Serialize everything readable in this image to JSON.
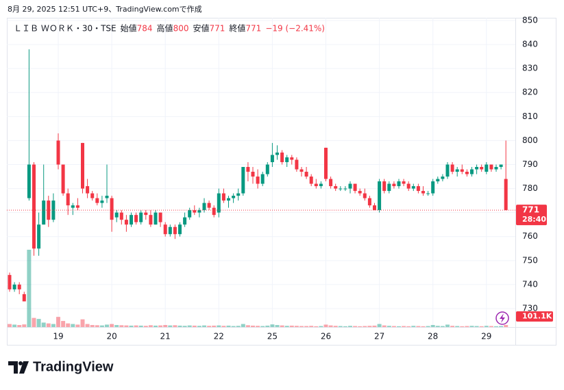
{
  "chart_data": {
    "type": "candlestick",
    "header_text": "8月 29, 2025 12:51 UTC+9、TradingView.comで作成",
    "symbol": "ＬＩＢ ＷＯＲＫ・30・TSE",
    "legend_labels": [
      "始値",
      "高値",
      "安値",
      "終値"
    ],
    "change_label": "−19 (−2.41%)",
    "countdown": "28:40",
    "last_volume_label": "101.1K",
    "brand": "TradingView",
    "up_color": "#089981",
    "down_color": "#f23645",
    "grid": true,
    "ylim": [
      722.3,
      850
    ],
    "yticks": [
      730,
      740,
      750,
      760,
      770,
      780,
      790,
      800,
      810,
      820,
      830,
      840,
      850
    ],
    "categories": [
      null,
      null,
      null,
      null,
      null,
      null,
      null,
      null,
      null,
      null,
      "19",
      null,
      null,
      null,
      null,
      null,
      null,
      null,
      null,
      null,
      null,
      "20",
      null,
      null,
      null,
      null,
      null,
      null,
      null,
      null,
      null,
      null,
      "21",
      null,
      null,
      null,
      null,
      null,
      null,
      null,
      null,
      null,
      null,
      "22",
      null,
      null,
      null,
      null,
      null,
      null,
      null,
      null,
      null,
      null,
      "25",
      null,
      null,
      null,
      null,
      null,
      null,
      null,
      null,
      null,
      null,
      "26",
      null,
      null,
      null,
      null,
      null,
      null,
      null,
      null,
      null,
      null,
      "27",
      null,
      null,
      null,
      null,
      null,
      null,
      null,
      null,
      null,
      null,
      "28",
      null,
      null,
      null,
      null,
      null,
      null,
      null,
      null,
      null,
      null,
      "29",
      null,
      null,
      null,
      null
    ],
    "open": [
      744,
      738,
      740,
      736,
      776,
      790,
      755,
      765,
      775,
      767,
      800,
      790,
      778,
      772,
      773,
      799,
      781,
      778,
      776,
      774,
      776,
      776,
      768,
      770,
      767,
      765,
      769,
      766,
      770,
      769,
      765,
      770,
      765,
      761,
      764,
      761,
      765,
      768,
      771,
      770,
      771,
      774,
      772,
      770,
      778,
      775,
      776,
      777,
      778,
      789,
      787,
      785,
      782,
      786,
      791,
      794,
      795,
      791,
      793,
      792,
      788,
      787,
      785,
      782,
      781,
      797,
      784,
      781,
      780,
      780,
      780,
      782,
      779,
      778,
      776,
      773,
      771,
      783,
      779,
      782,
      781,
      783,
      782,
      780,
      781,
      779,
      778,
      778,
      783,
      784,
      785,
      790,
      787,
      788,
      787,
      786,
      788,
      789,
      787,
      790,
      788,
      789,
      784
    ],
    "high": [
      745,
      741,
      741,
      737,
      838,
      791,
      770,
      790,
      777,
      778,
      803,
      790,
      780,
      774,
      776,
      799,
      784,
      779,
      778,
      777,
      790,
      777,
      771,
      771,
      769,
      770,
      770,
      771,
      771,
      771,
      771,
      770,
      766,
      765,
      765,
      766,
      770,
      772,
      773,
      772,
      776,
      775,
      773,
      780,
      780,
      777,
      778,
      780,
      789,
      791,
      789,
      788,
      787,
      791,
      799,
      798,
      796,
      794,
      794,
      793,
      789,
      789,
      786,
      784,
      783,
      797,
      785,
      782,
      781,
      781,
      783,
      782,
      780,
      780,
      777,
      774,
      784,
      784,
      783,
      783,
      784,
      784,
      783,
      782,
      782,
      781,
      779,
      784,
      785,
      786,
      791,
      791,
      789,
      790,
      788,
      789,
      790,
      790,
      791,
      790,
      790,
      790,
      800
    ],
    "low": [
      737,
      737,
      736,
      733,
      775,
      752,
      752,
      765,
      764,
      766,
      788,
      777,
      769,
      769,
      771,
      778,
      776,
      775,
      773,
      772,
      774,
      762,
      766,
      765,
      762,
      764,
      765,
      765,
      767,
      764,
      765,
      764,
      760,
      760,
      759,
      760,
      764,
      767,
      769,
      768,
      770,
      771,
      768,
      768,
      774,
      772,
      774,
      775,
      777,
      783,
      782,
      780,
      781,
      785,
      789,
      792,
      790,
      789,
      790,
      787,
      785,
      784,
      781,
      780,
      780,
      783,
      780,
      779,
      779,
      779,
      778,
      778,
      777,
      775,
      772,
      771,
      770,
      778,
      778,
      780,
      780,
      781,
      779,
      779,
      778,
      777,
      777,
      777,
      782,
      783,
      784,
      786,
      785,
      786,
      785,
      785,
      786,
      787,
      786,
      787,
      787,
      788,
      771
    ],
    "close": [
      738,
      740,
      738,
      733,
      790,
      755,
      765,
      775,
      767,
      775,
      790,
      778,
      773,
      773,
      772,
      780,
      778,
      776,
      774,
      775,
      777,
      767,
      770,
      767,
      765,
      769,
      766,
      770,
      769,
      765,
      770,
      766,
      761,
      764,
      761,
      765,
      768,
      771,
      770,
      771,
      774,
      772,
      769,
      778,
      775,
      776,
      777,
      778,
      789,
      787,
      785,
      782,
      786,
      790,
      794,
      795,
      791,
      793,
      792,
      788,
      787,
      785,
      782,
      781,
      782,
      784,
      781,
      780,
      780,
      780,
      782,
      779,
      778,
      776,
      773,
      771,
      783,
      779,
      782,
      781,
      783,
      782,
      780,
      781,
      779,
      778,
      778,
      783,
      784,
      785,
      790,
      787,
      788,
      787,
      786,
      788,
      789,
      788,
      790,
      788,
      789,
      790,
      771
    ],
    "volume": [
      150000,
      120000,
      100000,
      130000,
      3800000,
      450000,
      400000,
      220000,
      180000,
      150000,
      500000,
      300000,
      180000,
      150000,
      120000,
      380000,
      150000,
      100000,
      90000,
      80000,
      120000,
      150000,
      100000,
      90000,
      80000,
      70000,
      80000,
      70000,
      60000,
      90000,
      70000,
      80000,
      100000,
      80000,
      90000,
      70000,
      60000,
      80000,
      70000,
      60000,
      80000,
      60000,
      70000,
      80000,
      60000,
      70000,
      50000,
      60000,
      150000,
      90000,
      70000,
      60000,
      50000,
      70000,
      130000,
      100000,
      80000,
      60000,
      70000,
      60000,
      50000,
      50000,
      60000,
      40000,
      50000,
      120000,
      80000,
      60000,
      50000,
      40000,
      60000,
      50000,
      40000,
      50000,
      60000,
      70000,
      150000,
      80000,
      60000,
      50000,
      40000,
      50000,
      40000,
      60000,
      50000,
      40000,
      50000,
      100000,
      60000,
      50000,
      120000,
      60000,
      50000,
      40000,
      50000,
      60000,
      50000,
      40000,
      60000,
      50000,
      40000,
      50000,
      101100
    ]
  }
}
